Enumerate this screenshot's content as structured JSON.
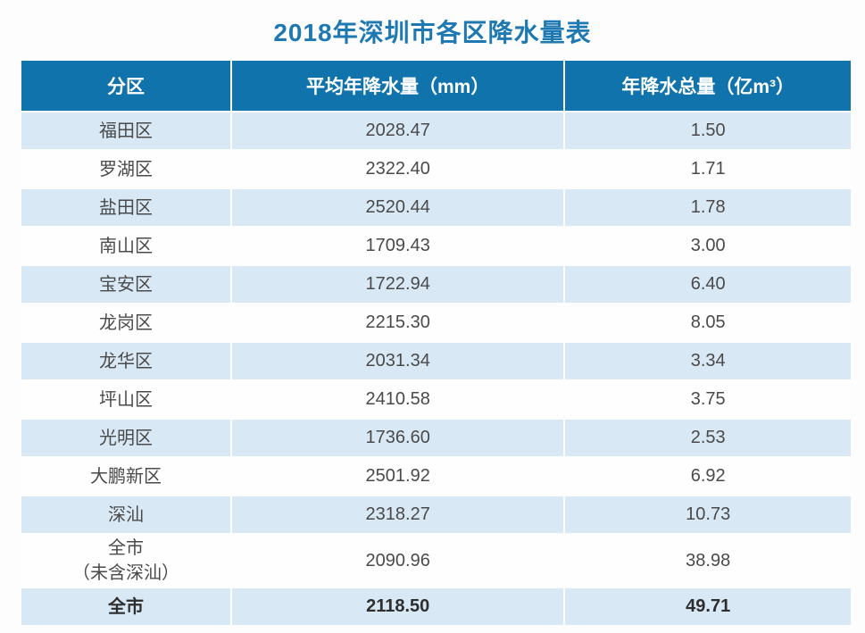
{
  "page": {
    "title": "2018年深圳市各区降水量表"
  },
  "colors": {
    "title_text": "#1e78b2",
    "header_bg": "#1173ac",
    "header_text": "#ffffff",
    "row_alt_bg": "#d9e8f5",
    "body_text": "#4a4a4a",
    "emphasis_text": "#2e2e2e"
  },
  "chart_data": {
    "type": "table",
    "title": "2018年深圳市各区降水量表",
    "columns": [
      "分区",
      "平均年降水量（mm）",
      "年降水总量（亿m³）"
    ],
    "rows": [
      {
        "district": "福田区",
        "avg_mm": "2028.47",
        "total_yi_m3": "1.50",
        "emphasis": false
      },
      {
        "district": "罗湖区",
        "avg_mm": "2322.40",
        "total_yi_m3": "1.71",
        "emphasis": false
      },
      {
        "district": "盐田区",
        "avg_mm": "2520.44",
        "total_yi_m3": "1.78",
        "emphasis": false
      },
      {
        "district": "南山区",
        "avg_mm": "1709.43",
        "total_yi_m3": "3.00",
        "emphasis": false
      },
      {
        "district": "宝安区",
        "avg_mm": "1722.94",
        "total_yi_m3": "6.40",
        "emphasis": false
      },
      {
        "district": "龙岗区",
        "avg_mm": "2215.30",
        "total_yi_m3": "8.05",
        "emphasis": false
      },
      {
        "district": "龙华区",
        "avg_mm": "2031.34",
        "total_yi_m3": "3.34",
        "emphasis": false
      },
      {
        "district": "坪山区",
        "avg_mm": "2410.58",
        "total_yi_m3": "3.75",
        "emphasis": false
      },
      {
        "district": "光明区",
        "avg_mm": "1736.60",
        "total_yi_m3": "2.53",
        "emphasis": false
      },
      {
        "district": "大鹏新区",
        "avg_mm": "2501.92",
        "total_yi_m3": "6.92",
        "emphasis": false
      },
      {
        "district": "深汕",
        "avg_mm": "2318.27",
        "total_yi_m3": "10.73",
        "emphasis": false
      },
      {
        "district": "全市\n（未含深汕）",
        "avg_mm": "2090.96",
        "total_yi_m3": "38.98",
        "emphasis": false
      },
      {
        "district": "全市",
        "avg_mm": "2118.50",
        "total_yi_m3": "49.71",
        "emphasis": true
      }
    ]
  }
}
